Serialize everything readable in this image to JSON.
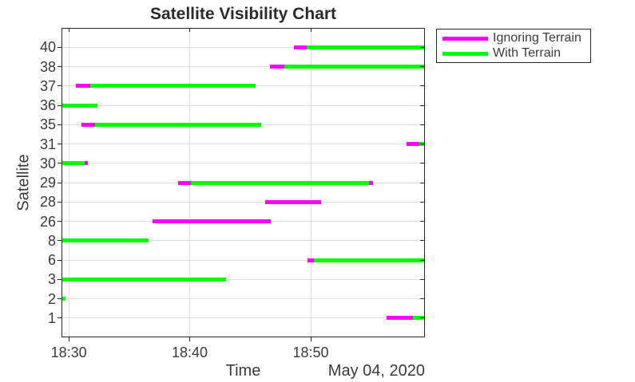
{
  "chart_data": {
    "type": "bar",
    "layout_hint": "horizontal-interval-timeline (satellite visibility gantt), grid on, legend top-right outside plot",
    "title": "Satellite Visibility Chart",
    "xlabel": "Time",
    "x_date_label": "May 04, 2020",
    "ylabel": "Satellite",
    "time_reference": "minutes after 18:30",
    "x_domain_minutes": [
      -0.6,
      29.44
    ],
    "x_ticks": [
      {
        "minutes": 0,
        "label": "18:30"
      },
      {
        "minutes": 10,
        "label": "18:40"
      },
      {
        "minutes": 20,
        "label": "18:50"
      }
    ],
    "legend": [
      {
        "key": "ignoring",
        "label": "Ignoring Terrain",
        "color": "#FF00FF"
      },
      {
        "key": "with",
        "label": "With Terrain",
        "color": "#00FF00"
      }
    ],
    "rows": [
      {
        "satellite": "40",
        "segments": [
          {
            "series": "ignoring",
            "start": 18.6,
            "end": 19.7
          },
          {
            "series": "with",
            "start": 19.7,
            "end": 29.44
          }
        ]
      },
      {
        "satellite": "38",
        "segments": [
          {
            "series": "ignoring",
            "start": 16.6,
            "end": 17.8
          },
          {
            "series": "with",
            "start": 17.8,
            "end": 29.44
          }
        ]
      },
      {
        "satellite": "37",
        "segments": [
          {
            "series": "ignoring",
            "start": 0.6,
            "end": 1.75
          },
          {
            "series": "with",
            "start": 1.75,
            "end": 15.45
          }
        ]
      },
      {
        "satellite": "36",
        "segments": [
          {
            "series": "with",
            "start": -0.6,
            "end": 2.4
          }
        ]
      },
      {
        "satellite": "35",
        "segments": [
          {
            "series": "ignoring",
            "start": 1.05,
            "end": 2.2
          },
          {
            "series": "with",
            "start": 2.2,
            "end": 15.9
          }
        ]
      },
      {
        "satellite": "31",
        "segments": [
          {
            "series": "ignoring",
            "start": 27.9,
            "end": 29.0
          },
          {
            "series": "with",
            "start": 29.0,
            "end": 29.44
          }
        ]
      },
      {
        "satellite": "30",
        "segments": [
          {
            "series": "with",
            "start": -0.6,
            "end": 1.3
          },
          {
            "series": "ignoring",
            "start": 1.3,
            "end": 1.6
          }
        ]
      },
      {
        "satellite": "29",
        "segments": [
          {
            "series": "ignoring",
            "start": 9.05,
            "end": 10.1
          },
          {
            "series": "with",
            "start": 10.1,
            "end": 24.8
          },
          {
            "series": "ignoring",
            "start": 24.8,
            "end": 25.15
          }
        ]
      },
      {
        "satellite": "28",
        "segments": [
          {
            "series": "ignoring",
            "start": 16.25,
            "end": 20.85
          }
        ]
      },
      {
        "satellite": "26",
        "segments": [
          {
            "series": "ignoring",
            "start": 6.95,
            "end": 16.7
          }
        ]
      },
      {
        "satellite": "8",
        "segments": [
          {
            "series": "with",
            "start": -0.6,
            "end": 6.6
          }
        ]
      },
      {
        "satellite": "6",
        "segments": [
          {
            "series": "ignoring",
            "start": 19.75,
            "end": 20.25
          },
          {
            "series": "with",
            "start": 20.25,
            "end": 29.44
          }
        ]
      },
      {
        "satellite": "3",
        "segments": [
          {
            "series": "with",
            "start": -0.6,
            "end": 13.0
          }
        ]
      },
      {
        "satellite": "2",
        "segments": [
          {
            "series": "with",
            "start": -0.6,
            "end": -0.25
          }
        ]
      },
      {
        "satellite": "1",
        "segments": [
          {
            "series": "ignoring",
            "start": 26.3,
            "end": 28.45
          },
          {
            "series": "with",
            "start": 28.45,
            "end": 29.44
          }
        ]
      }
    ],
    "colors": {
      "magenta_series": "#FF00FF",
      "green_series": "#00FF00",
      "axis": "#262626",
      "grid": "#e0e0e0",
      "text": "#3b3b3b"
    }
  }
}
